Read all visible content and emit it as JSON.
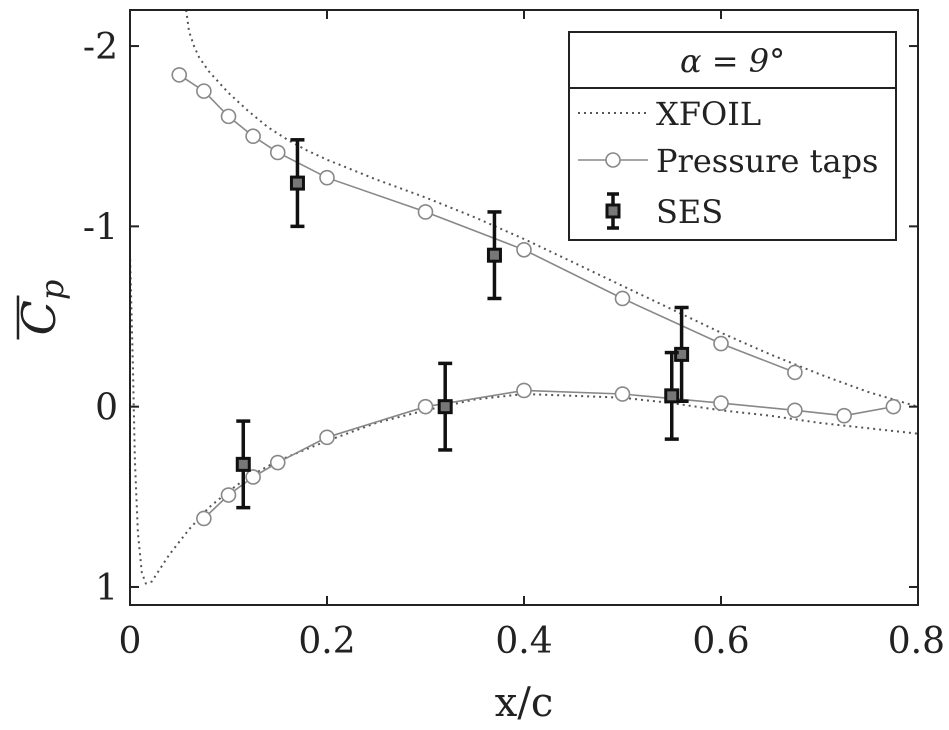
{
  "chart_data": {
    "type": "scatter",
    "title": "",
    "xlabel": "x/c",
    "ylabel": "C",
    "ylabel_subscript": "p",
    "xlim": [
      0,
      0.8
    ],
    "ylim": [
      1.1,
      -2.2
    ],
    "y_axis_reversed": true,
    "x_ticks": [
      0,
      0.2,
      0.4,
      0.6,
      0.8
    ],
    "x_tick_labels": [
      "0",
      "0.2",
      "0.4",
      "0.6",
      "0.8"
    ],
    "y_ticks": [
      -2,
      -1,
      0,
      1
    ],
    "y_tick_labels": [
      "-2",
      "-1",
      "0",
      "1"
    ],
    "grid": false,
    "legend": {
      "placement": "top-right",
      "header": "α = 9°",
      "entries": [
        "XFOIL",
        "Pressure taps",
        "SES"
      ]
    },
    "series": [
      {
        "name": "XFOIL",
        "style": "dotted",
        "color": "#555555",
        "segments": [
          {
            "x": [
              0.057,
              0.06,
              0.065,
              0.07,
              0.08,
              0.09,
              0.1,
              0.12,
              0.14,
              0.16,
              0.18,
              0.2,
              0.25,
              0.3,
              0.35,
              0.4,
              0.45,
              0.5,
              0.55,
              0.6,
              0.65,
              0.7,
              0.75,
              0.8
            ],
            "y": [
              -2.2,
              -2.08,
              -2.0,
              -1.94,
              -1.86,
              -1.8,
              -1.74,
              -1.64,
              -1.55,
              -1.48,
              -1.42,
              -1.37,
              -1.26,
              -1.16,
              -1.05,
              -0.93,
              -0.8,
              -0.67,
              -0.54,
              -0.41,
              -0.29,
              -0.18,
              -0.08,
              0.0
            ]
          },
          {
            "x": [
              0.0,
              0.003,
              0.005,
              0.008,
              0.012,
              0.016,
              0.022,
              0.04,
              0.06,
              0.08,
              0.1,
              0.12,
              0.15,
              0.2,
              0.25,
              0.3,
              0.35,
              0.4,
              0.45,
              0.5,
              0.55,
              0.6,
              0.65,
              0.7,
              0.75,
              0.8
            ],
            "y": [
              -0.85,
              -0.2,
              0.3,
              0.7,
              0.92,
              0.98,
              0.97,
              0.82,
              0.68,
              0.56,
              0.47,
              0.39,
              0.3,
              0.19,
              0.09,
              0.02,
              -0.04,
              -0.07,
              -0.06,
              -0.05,
              -0.02,
              0.02,
              0.05,
              0.09,
              0.12,
              0.15
            ]
          }
        ]
      },
      {
        "name": "Pressure taps",
        "style": "line-circles",
        "color": "#888888",
        "segments": [
          {
            "x": [
              0.05,
              0.075,
              0.1,
              0.125,
              0.15,
              0.2,
              0.3,
              0.4,
              0.5,
              0.6,
              0.675
            ],
            "y": [
              -1.84,
              -1.75,
              -1.61,
              -1.5,
              -1.41,
              -1.27,
              -1.08,
              -0.87,
              -0.6,
              -0.35,
              -0.19
            ]
          },
          {
            "x": [
              0.075,
              0.1,
              0.125,
              0.15,
              0.2,
              0.3,
              0.4,
              0.5,
              0.6,
              0.675,
              0.725,
              0.775
            ],
            "y": [
              0.62,
              0.49,
              0.39,
              0.31,
              0.17,
              0.0,
              -0.09,
              -0.07,
              -0.02,
              0.02,
              0.05,
              0.0
            ]
          }
        ]
      },
      {
        "name": "SES",
        "style": "markers-errorbars",
        "color": "#111111",
        "fill": "#777777",
        "points": [
          {
            "x": 0.17,
            "y": -1.24,
            "err": 0.24
          },
          {
            "x": 0.37,
            "y": -0.84,
            "err": 0.24
          },
          {
            "x": 0.56,
            "y": -0.29,
            "err": 0.26
          },
          {
            "x": 0.115,
            "y": 0.32,
            "err": 0.24
          },
          {
            "x": 0.32,
            "y": 0.0,
            "err": 0.24
          },
          {
            "x": 0.55,
            "y": -0.06,
            "err": 0.24
          }
        ]
      }
    ]
  }
}
